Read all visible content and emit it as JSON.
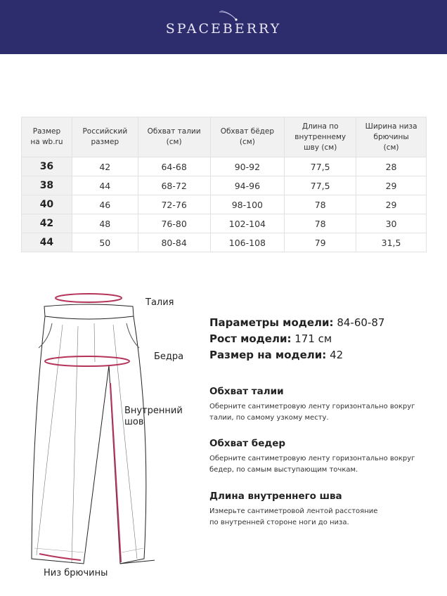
{
  "brand": {
    "name": "SPACEBERRY",
    "bg": "#2d2d6e"
  },
  "table": {
    "headers": [
      [
        "Размер",
        "на wb.ru"
      ],
      [
        "Российский",
        "размер"
      ],
      [
        "Обхват талии",
        "(см)"
      ],
      [
        "Обхват бёдер",
        "(см)"
      ],
      [
        "Длина по",
        "внутреннему",
        "шву (см)"
      ],
      [
        "Ширина низа",
        "брючины",
        "(см)"
      ]
    ],
    "rows": [
      [
        "36",
        "42",
        "64-68",
        "90-92",
        "77,5",
        "28"
      ],
      [
        "38",
        "44",
        "68-72",
        "94-96",
        "77,5",
        "29"
      ],
      [
        "40",
        "46",
        "72-76",
        "98-100",
        "78",
        "29"
      ],
      [
        "42",
        "48",
        "76-80",
        "102-104",
        "78",
        "30"
      ],
      [
        "44",
        "50",
        "80-84",
        "106-108",
        "79",
        "31,5"
      ]
    ]
  },
  "diagram": {
    "waist": "Талия",
    "hips": "Бедра",
    "inseam_1": "Внутренний",
    "inseam_2": "шов",
    "hem": "Низ брючины",
    "accent": "#b5345a"
  },
  "model": {
    "params_label": "Параметры модели:",
    "params_value": "84-60-87",
    "height_label": "Рост модели:",
    "height_value": "171 см",
    "size_label": "Размер на модели:",
    "size_value": "42"
  },
  "sections": [
    {
      "title": "Обхват талии",
      "lines": [
        "Оберните сантиметровую ленту горизонтально вокруг",
        "талии, по самому узкому месту."
      ]
    },
    {
      "title": "Обхват бедер",
      "lines": [
        "Оберните сантиметровую ленту горизонтально вокруг",
        "бедер, по самым выступающим точкам."
      ]
    },
    {
      "title": "Длина внутреннего шва",
      "lines": [
        "Измерьте сантиметровой лентой расстояние",
        "по внутренней стороне ноги до низа."
      ]
    }
  ]
}
